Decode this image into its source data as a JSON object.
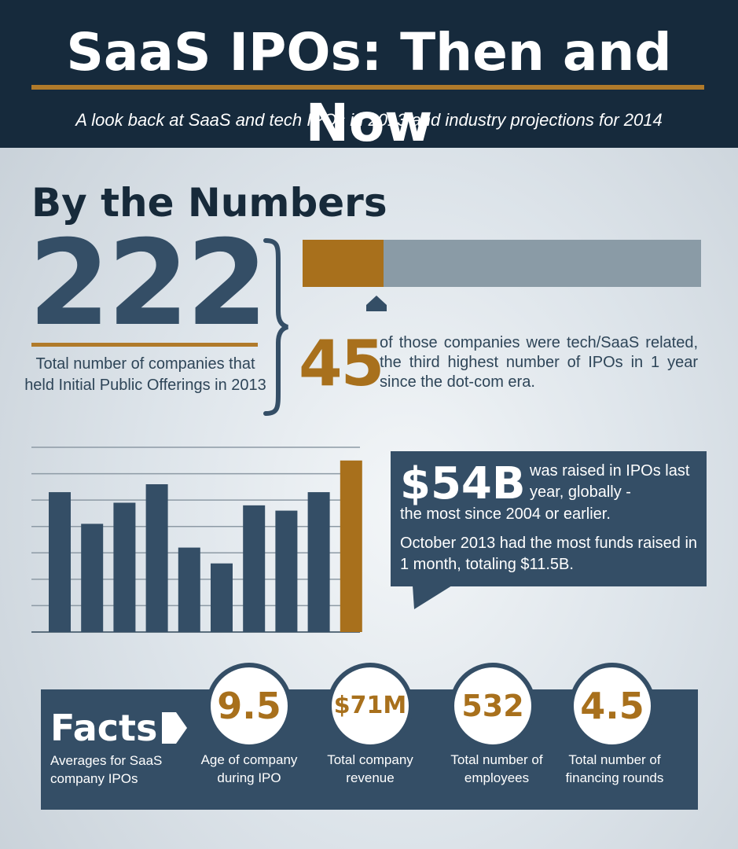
{
  "header": {
    "title": "SaaS IPOs: Then and Now",
    "subtitle": "A look back at SaaS and tech IPOs in 2013 and industry projections for 2014"
  },
  "numbers": {
    "heading": "By the Numbers",
    "total_ipos": "222",
    "total_ipos_desc": "Total number of companies that held Initial Public Offerings in 2013",
    "tech_ipos": "45",
    "tech_ipos_desc": "of those companies were tech/SaaS related, the third highest number of IPOs in 1 year since the dot-com era.",
    "tech_share_fraction": 0.2027
  },
  "colors": {
    "navy": "#162a3c",
    "slate": "#344e66",
    "gold": "#a8701c",
    "gray_bar": "#8a9ba6"
  },
  "chart_data": {
    "type": "bar",
    "values": [
      5.3,
      4.1,
      4.9,
      5.6,
      3.2,
      2.6,
      4.8,
      4.6,
      5.3,
      6.5
    ],
    "highlight_index": 9,
    "ylim": [
      0,
      7
    ],
    "grid": true,
    "title": "",
    "xlabel": "",
    "ylabel": ""
  },
  "callout": {
    "big_value": "$54B",
    "text_line1": "was raised in IPOs last year,  globally -",
    "text_line2": "the most since 2004 or earlier.",
    "text_line3": "October 2013 had the most funds raised in 1 month, totaling $11.5B."
  },
  "facts": {
    "title": "Facts",
    "desc": "Averages for SaaS company IPOs",
    "items": [
      {
        "value": "9.5",
        "label": "Age of company during IPO"
      },
      {
        "value": "$71M",
        "label": "Total company revenue"
      },
      {
        "value": "532",
        "label": "Total number of employees"
      },
      {
        "value": "4.5",
        "label": "Total number of financing rounds"
      }
    ]
  }
}
